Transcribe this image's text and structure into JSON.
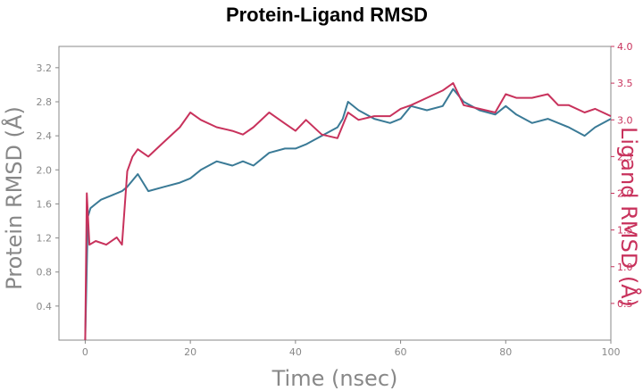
{
  "chart_data": {
    "type": "line",
    "title": "Protein-Ligand RMSD",
    "xlabel": "Time (nsec)",
    "ylabel": "Protein RMSD (Å)",
    "y2label": "Ligand RMSD (Å)",
    "xlim": [
      -5,
      100
    ],
    "ylim": [
      0,
      3.45
    ],
    "y2lim": [
      0,
      4.0
    ],
    "xticks": [
      0,
      20,
      40,
      60,
      80,
      100
    ],
    "yticks": [
      0.4,
      0.8,
      1.2,
      1.6,
      2.0,
      2.4,
      2.8,
      3.2
    ],
    "y2ticks": [
      0.5,
      1.0,
      1.5,
      2.0,
      2.5,
      3.0,
      3.5,
      4.0
    ],
    "grid": false,
    "colors": {
      "protein": "#3a7a96",
      "ligand": "#c8325c",
      "axis_left": "#888888",
      "axis_right": "#c8325c",
      "frame": "#888888"
    },
    "series": [
      {
        "axis": "left",
        "color": "#3a7a96",
        "x": [
          0,
          0.5,
          1,
          2,
          3,
          5,
          7,
          8,
          10,
          12,
          15,
          18,
          20,
          22,
          25,
          28,
          30,
          32,
          35,
          38,
          40,
          42,
          45,
          48,
          49,
          50,
          52,
          55,
          58,
          60,
          62,
          65,
          68,
          70,
          72,
          75,
          78,
          80,
          82,
          85,
          88,
          90,
          92,
          95,
          97,
          100
        ],
        "values": [
          0.0,
          1.45,
          1.55,
          1.6,
          1.65,
          1.7,
          1.75,
          1.8,
          1.95,
          1.75,
          1.8,
          1.85,
          1.9,
          2.0,
          2.1,
          2.05,
          2.1,
          2.05,
          2.2,
          2.25,
          2.25,
          2.3,
          2.4,
          2.5,
          2.6,
          2.8,
          2.7,
          2.6,
          2.55,
          2.6,
          2.75,
          2.7,
          2.75,
          2.95,
          2.8,
          2.7,
          2.65,
          2.75,
          2.65,
          2.55,
          2.6,
          2.55,
          2.5,
          2.4,
          2.5,
          2.6
        ]
      },
      {
        "axis": "right",
        "color": "#c8325c",
        "x": [
          0,
          0.3,
          0.8,
          2,
          4,
          6,
          7,
          8,
          9,
          10,
          12,
          15,
          18,
          20,
          22,
          25,
          28,
          30,
          32,
          35,
          38,
          40,
          42,
          45,
          48,
          50,
          52,
          55,
          58,
          60,
          62,
          65,
          68,
          70,
          72,
          75,
          78,
          80,
          82,
          85,
          88,
          90,
          92,
          95,
          97,
          100
        ],
        "values": [
          0.0,
          2.0,
          1.3,
          1.35,
          1.3,
          1.4,
          1.3,
          2.3,
          2.5,
          2.6,
          2.5,
          2.7,
          2.9,
          3.1,
          3.0,
          2.9,
          2.85,
          2.8,
          2.9,
          3.1,
          2.95,
          2.85,
          3.0,
          2.8,
          2.75,
          3.1,
          3.0,
          3.05,
          3.05,
          3.15,
          3.2,
          3.3,
          3.4,
          3.5,
          3.2,
          3.15,
          3.1,
          3.35,
          3.3,
          3.3,
          3.35,
          3.2,
          3.2,
          3.1,
          3.15,
          3.05
        ]
      }
    ]
  }
}
